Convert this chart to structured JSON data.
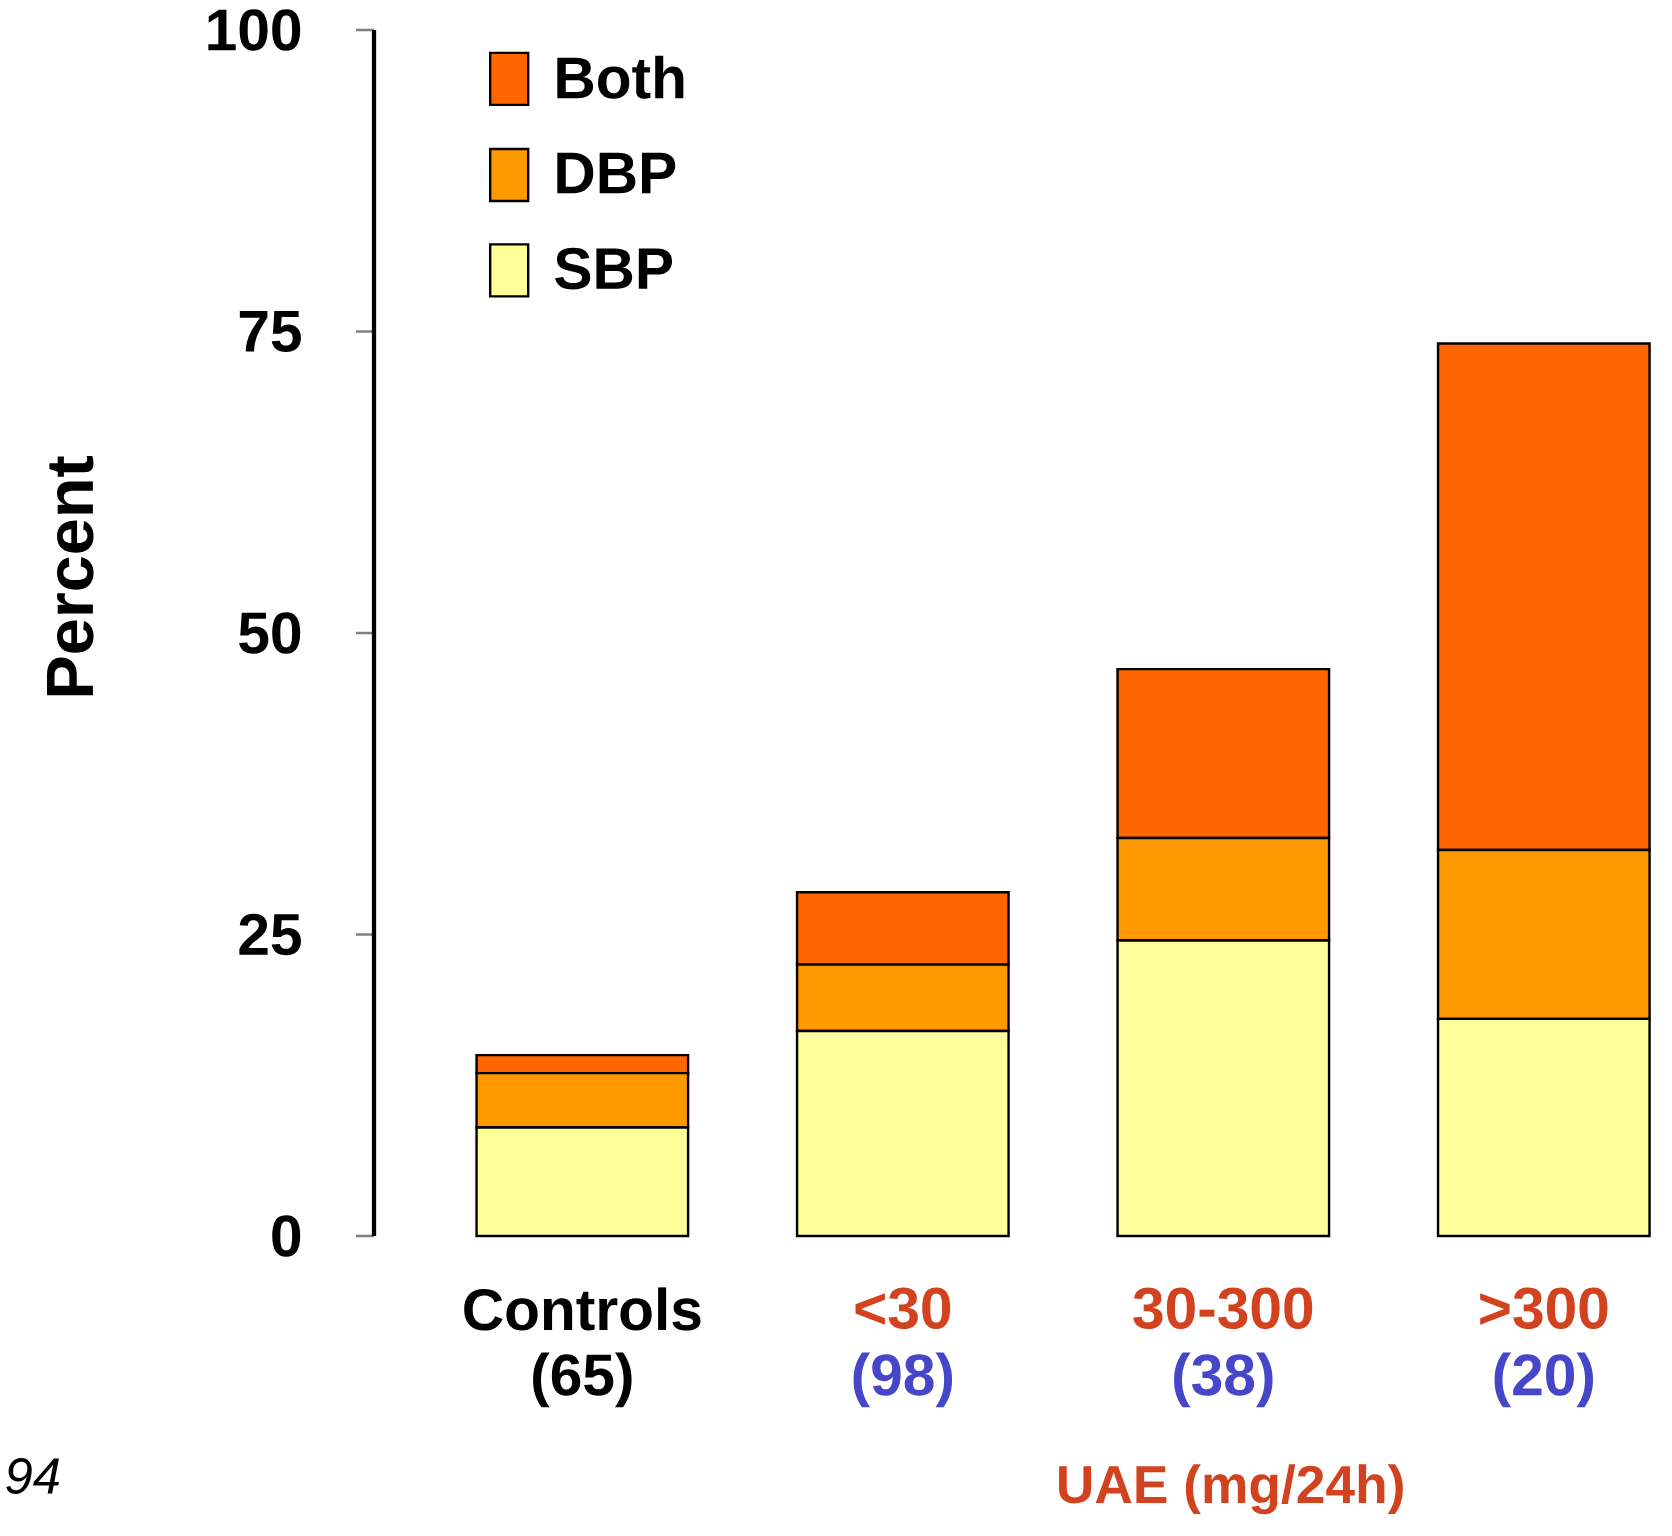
{
  "chart_data": {
    "type": "bar",
    "stacked": true,
    "ylabel": "Percent",
    "xlabel": "UAE (mg/24h)",
    "categories": [
      "Controls",
      "<30",
      "30-300",
      ">300"
    ],
    "series": [
      {
        "name": "SBP",
        "color": "#ffff99",
        "values": [
          9,
          17,
          24.5,
          18
        ]
      },
      {
        "name": "DBP",
        "color": "#ff9900",
        "values": [
          4.5,
          5.5,
          8.5,
          14
        ]
      },
      {
        "name": "Both",
        "color": "#ff6600",
        "values": [
          1.5,
          6,
          14,
          42
        ]
      }
    ],
    "ylim": [
      0,
      100
    ],
    "yticks": [
      0,
      25,
      50,
      75,
      100
    ],
    "legend": "top left",
    "annotations": [
      "(65)",
      "(98)",
      "(38)",
      "(20)",
      "94"
    ]
  }
}
